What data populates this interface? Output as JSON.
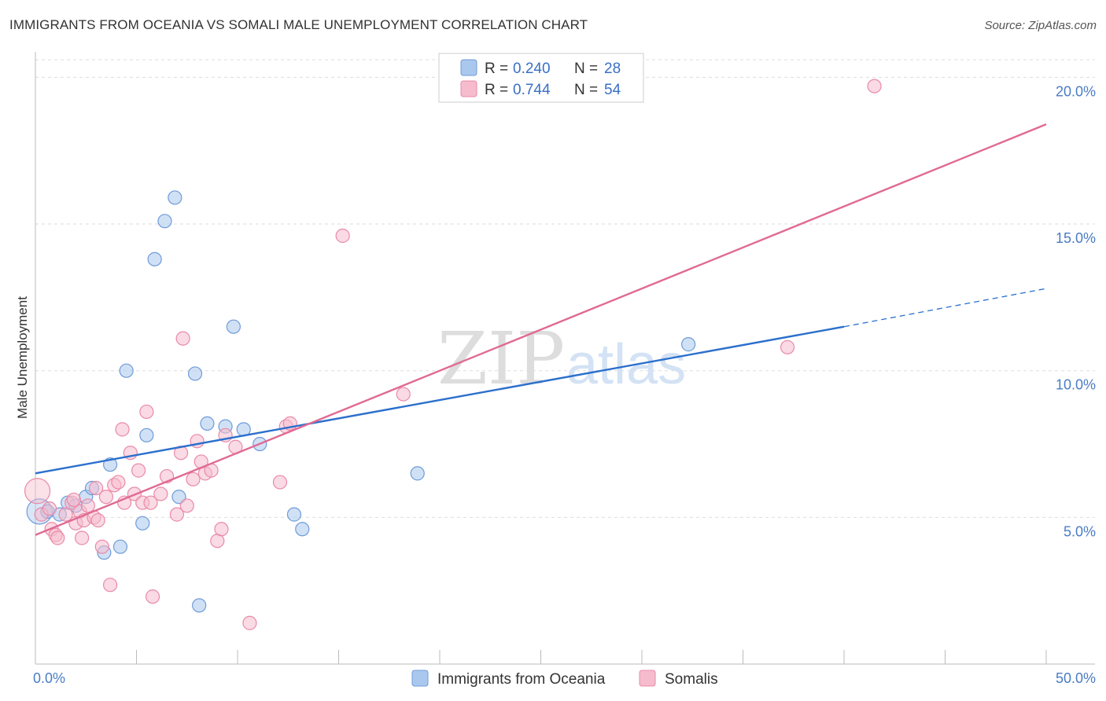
{
  "header": {
    "title": "IMMIGRANTS FROM OCEANIA VS SOMALI MALE UNEMPLOYMENT CORRELATION CHART",
    "source": "Source: ZipAtlas.com"
  },
  "watermark": {
    "zip": "ZIP",
    "atlas": "atlas"
  },
  "colors": {
    "blue_fill": "#aac8ee",
    "blue_stroke": "#6f9bd8",
    "blue_line": "#2b6fcc",
    "pink_fill": "#f6bccd",
    "pink_stroke": "#e98aa7",
    "pink_line": "#e06a93",
    "axis_label": "#4a7cc4",
    "grid": "#dddddd"
  },
  "chart_data": {
    "type": "scatter",
    "title": "IMMIGRANTS FROM OCEANIA VS SOMALI MALE UNEMPLOYMENT CORRELATION CHART",
    "xlabel": "",
    "ylabel": "Male Unemployment",
    "xlim": [
      0,
      50
    ],
    "ylim": [
      0,
      20.6
    ],
    "x_tick_labels": [
      "0.0%",
      "50.0%"
    ],
    "y_ticks": [
      {
        "value": 5,
        "label": "5.0%"
      },
      {
        "value": 10,
        "label": "10.0%"
      },
      {
        "value": 15,
        "label": "15.0%"
      },
      {
        "value": 20,
        "label": "20.0%"
      }
    ],
    "grid": true,
    "legend_position": "top-center",
    "series": [
      {
        "name": "Immigrants from Oceania",
        "r_label": "R =",
        "r_value": "0.240",
        "n_label": "N =",
        "n_value": "28",
        "trend": {
          "x0": 0,
          "y0": 6.5,
          "x1": 40,
          "y1": 11.5
        },
        "trend_dashed": {
          "x0": 40,
          "y0": 11.5,
          "x1": 50,
          "y1": 12.8
        },
        "points": [
          {
            "x": 0.2,
            "y": 5.2,
            "big": true
          },
          {
            "x": 0.6,
            "y": 5.2
          },
          {
            "x": 1.2,
            "y": 5.1
          },
          {
            "x": 1.6,
            "y": 5.5
          },
          {
            "x": 2.0,
            "y": 5.4
          },
          {
            "x": 2.5,
            "y": 5.7
          },
          {
            "x": 2.8,
            "y": 6.0
          },
          {
            "x": 3.4,
            "y": 3.8
          },
          {
            "x": 3.7,
            "y": 6.8
          },
          {
            "x": 4.2,
            "y": 4.0
          },
          {
            "x": 4.5,
            "y": 10.0
          },
          {
            "x": 5.3,
            "y": 4.8
          },
          {
            "x": 5.5,
            "y": 7.8
          },
          {
            "x": 5.9,
            "y": 13.8
          },
          {
            "x": 6.4,
            "y": 15.1
          },
          {
            "x": 6.9,
            "y": 15.9
          },
          {
            "x": 7.1,
            "y": 5.7
          },
          {
            "x": 7.9,
            "y": 9.9
          },
          {
            "x": 8.1,
            "y": 2.0
          },
          {
            "x": 8.5,
            "y": 8.2
          },
          {
            "x": 9.4,
            "y": 8.1
          },
          {
            "x": 9.8,
            "y": 11.5
          },
          {
            "x": 10.3,
            "y": 8.0
          },
          {
            "x": 11.1,
            "y": 7.5
          },
          {
            "x": 12.8,
            "y": 5.1
          },
          {
            "x": 13.2,
            "y": 4.6
          },
          {
            "x": 18.9,
            "y": 6.5
          },
          {
            "x": 32.3,
            "y": 10.9
          }
        ]
      },
      {
        "name": "Somalis",
        "r_label": "R =",
        "r_value": "0.744",
        "n_label": "N =",
        "n_value": "54",
        "trend": {
          "x0": 0,
          "y0": 4.4,
          "x1": 50,
          "y1": 18.4
        },
        "points": [
          {
            "x": 0.1,
            "y": 5.9,
            "big": true
          },
          {
            "x": 0.3,
            "y": 5.1
          },
          {
            "x": 0.7,
            "y": 5.3
          },
          {
            "x": 0.8,
            "y": 4.6
          },
          {
            "x": 1.0,
            "y": 4.4
          },
          {
            "x": 1.1,
            "y": 4.3
          },
          {
            "x": 1.5,
            "y": 5.1
          },
          {
            "x": 1.8,
            "y": 5.5
          },
          {
            "x": 1.9,
            "y": 5.6
          },
          {
            "x": 2.0,
            "y": 4.8
          },
          {
            "x": 2.2,
            "y": 5.2
          },
          {
            "x": 2.3,
            "y": 4.3
          },
          {
            "x": 2.4,
            "y": 4.9
          },
          {
            "x": 2.6,
            "y": 5.4
          },
          {
            "x": 2.9,
            "y": 5.0
          },
          {
            "x": 3.0,
            "y": 6.0
          },
          {
            "x": 3.1,
            "y": 4.9
          },
          {
            "x": 3.3,
            "y": 4.0
          },
          {
            "x": 3.5,
            "y": 5.7
          },
          {
            "x": 3.7,
            "y": 2.7
          },
          {
            "x": 3.9,
            "y": 6.1
          },
          {
            "x": 4.1,
            "y": 6.2
          },
          {
            "x": 4.3,
            "y": 8.0
          },
          {
            "x": 4.4,
            "y": 5.5
          },
          {
            "x": 4.7,
            "y": 7.2
          },
          {
            "x": 4.9,
            "y": 5.8
          },
          {
            "x": 5.1,
            "y": 6.6
          },
          {
            "x": 5.3,
            "y": 5.5
          },
          {
            "x": 5.5,
            "y": 8.6
          },
          {
            "x": 5.7,
            "y": 5.5
          },
          {
            "x": 5.8,
            "y": 2.3
          },
          {
            "x": 6.2,
            "y": 5.8
          },
          {
            "x": 6.5,
            "y": 6.4
          },
          {
            "x": 7.0,
            "y": 5.1
          },
          {
            "x": 7.2,
            "y": 7.2
          },
          {
            "x": 7.3,
            "y": 11.1
          },
          {
            "x": 7.5,
            "y": 5.4
          },
          {
            "x": 7.8,
            "y": 6.3
          },
          {
            "x": 8.0,
            "y": 7.6
          },
          {
            "x": 8.2,
            "y": 6.9
          },
          {
            "x": 8.4,
            "y": 6.5
          },
          {
            "x": 8.7,
            "y": 6.6
          },
          {
            "x": 9.0,
            "y": 4.2
          },
          {
            "x": 9.2,
            "y": 4.6
          },
          {
            "x": 9.4,
            "y": 7.8
          },
          {
            "x": 9.9,
            "y": 7.4
          },
          {
            "x": 10.6,
            "y": 1.4
          },
          {
            "x": 12.1,
            "y": 6.2
          },
          {
            "x": 12.4,
            "y": 8.1
          },
          {
            "x": 12.6,
            "y": 8.2
          },
          {
            "x": 15.2,
            "y": 14.6
          },
          {
            "x": 18.2,
            "y": 9.2
          },
          {
            "x": 37.2,
            "y": 10.8
          },
          {
            "x": 41.5,
            "y": 19.7
          }
        ]
      }
    ]
  }
}
